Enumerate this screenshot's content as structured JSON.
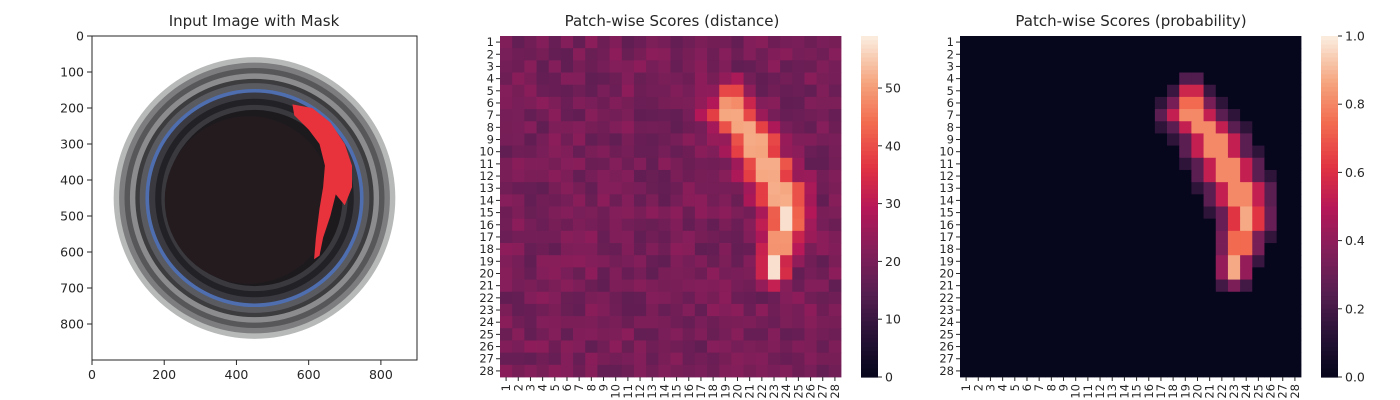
{
  "chart_data": [
    {
      "type": "image",
      "title": "Input Image with Mask",
      "xlim": [
        0,
        900
      ],
      "ylim": [
        900,
        0
      ],
      "x_ticks": [
        0,
        200,
        400,
        600,
        800
      ],
      "y_ticks": [
        0,
        100,
        200,
        300,
        400,
        500,
        600,
        700,
        800
      ],
      "mask_color": "#e8323c"
    },
    {
      "type": "heatmap",
      "title": "Patch-wise Scores (distance)",
      "x_categories": [
        "1",
        "2",
        "3",
        "4",
        "5",
        "6",
        "7",
        "8",
        "9",
        "10",
        "11",
        "12",
        "13",
        "14",
        "15",
        "16",
        "17",
        "18",
        "19",
        "20",
        "21",
        "22",
        "23",
        "24",
        "25",
        "26",
        "27",
        "28"
      ],
      "y_categories": [
        "1",
        "2",
        "3",
        "4",
        "5",
        "6",
        "7",
        "8",
        "9",
        "10",
        "11",
        "12",
        "13",
        "14",
        "15",
        "16",
        "17",
        "18",
        "19",
        "20",
        "21",
        "22",
        "23",
        "24",
        "25",
        "26",
        "27",
        "28"
      ],
      "colorbar_ticks": [
        0,
        10,
        20,
        30,
        40,
        50
      ],
      "vmin": 0,
      "vmax": 59,
      "colormap": "rocket",
      "hot_region": [
        {
          "row": 5,
          "cols": [
            19,
            20
          ]
        },
        {
          "row": 6,
          "cols": [
            18,
            21
          ]
        },
        {
          "row": 7,
          "cols": [
            17,
            22
          ]
        },
        {
          "row": 8,
          "cols": [
            18,
            23
          ]
        },
        {
          "row": 9,
          "cols": [
            19,
            24
          ]
        },
        {
          "row": 10,
          "cols": [
            19,
            24
          ]
        },
        {
          "row": 11,
          "cols": [
            20,
            25
          ]
        },
        {
          "row": 12,
          "cols": [
            20,
            25
          ]
        },
        {
          "row": 13,
          "cols": [
            21,
            26
          ]
        },
        {
          "row": 14,
          "cols": [
            21,
            26
          ]
        },
        {
          "row": 15,
          "cols": [
            22,
            26
          ]
        },
        {
          "row": 16,
          "cols": [
            22,
            26
          ]
        },
        {
          "row": 17,
          "cols": [
            22,
            25
          ]
        },
        {
          "row": 18,
          "cols": [
            22,
            25
          ]
        },
        {
          "row": 19,
          "cols": [
            22,
            24
          ]
        },
        {
          "row": 20,
          "cols": [
            22,
            24
          ]
        }
      ],
      "peak_value": 58
    },
    {
      "type": "heatmap",
      "title": "Patch-wise Scores (probability)",
      "x_categories": [
        "1",
        "2",
        "3",
        "4",
        "5",
        "6",
        "7",
        "8",
        "9",
        "10",
        "11",
        "12",
        "13",
        "14",
        "15",
        "16",
        "17",
        "18",
        "19",
        "20",
        "21",
        "22",
        "23",
        "24",
        "25",
        "26",
        "27",
        "28"
      ],
      "y_categories": [
        "1",
        "2",
        "3",
        "4",
        "5",
        "6",
        "7",
        "8",
        "9",
        "10",
        "11",
        "12",
        "13",
        "14",
        "15",
        "16",
        "17",
        "18",
        "19",
        "20",
        "21",
        "22",
        "23",
        "24",
        "25",
        "26",
        "27",
        "28"
      ],
      "colorbar_ticks": [
        "0.0",
        "0.2",
        "0.4",
        "0.6",
        "0.8",
        "1.0"
      ],
      "vmin": 0,
      "vmax": 1,
      "colormap": "rocket",
      "hot_region": [
        {
          "row": 5,
          "cols": [
            19,
            20
          ]
        },
        {
          "row": 6,
          "cols": [
            18,
            21
          ]
        },
        {
          "row": 7,
          "cols": [
            17,
            22
          ]
        },
        {
          "row": 8,
          "cols": [
            18,
            23
          ]
        },
        {
          "row": 9,
          "cols": [
            19,
            24
          ]
        },
        {
          "row": 10,
          "cols": [
            19,
            24
          ]
        },
        {
          "row": 11,
          "cols": [
            20,
            25
          ]
        },
        {
          "row": 12,
          "cols": [
            20,
            25
          ]
        },
        {
          "row": 13,
          "cols": [
            21,
            26
          ]
        },
        {
          "row": 14,
          "cols": [
            21,
            26
          ]
        },
        {
          "row": 15,
          "cols": [
            22,
            26
          ]
        },
        {
          "row": 16,
          "cols": [
            22,
            26
          ]
        },
        {
          "row": 17,
          "cols": [
            22,
            25
          ]
        },
        {
          "row": 18,
          "cols": [
            22,
            25
          ]
        },
        {
          "row": 19,
          "cols": [
            22,
            24
          ]
        },
        {
          "row": 20,
          "cols": [
            22,
            24
          ]
        }
      ],
      "peak_value": 0.82
    }
  ]
}
